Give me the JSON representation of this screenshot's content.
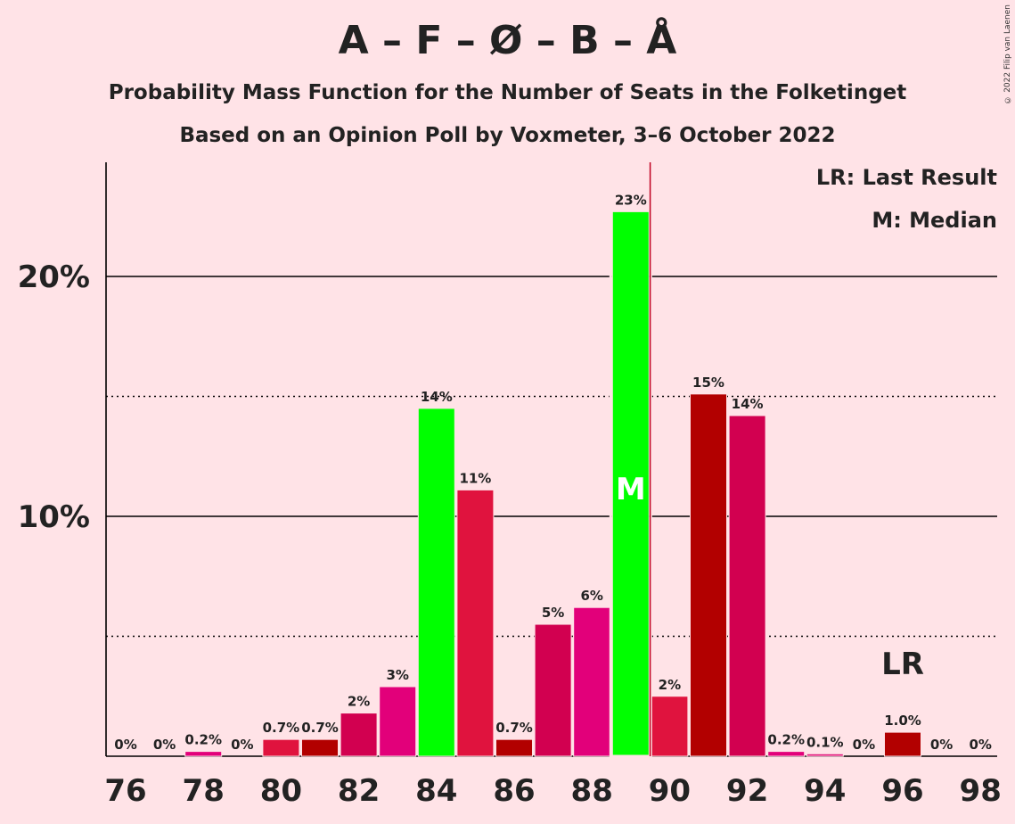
{
  "header": {
    "title": "A – F – Ø – B – Å",
    "subtitle1": "Probability Mass Function for the Number of Seats in the Folketinget",
    "subtitle2": "Based on an Opinion Poll by Voxmeter, 3–6 October 2022"
  },
  "legend": {
    "last_result": "LR: Last Result",
    "median": "M: Median"
  },
  "copyright": "© 2022 Filip van Laenen",
  "chart_data": {
    "type": "bar",
    "x": [
      76,
      77,
      78,
      79,
      80,
      81,
      82,
      83,
      84,
      85,
      86,
      87,
      88,
      89,
      90,
      91,
      92,
      93,
      94,
      95,
      96,
      97,
      98
    ],
    "values": [
      0,
      0,
      0.2,
      0,
      0.7,
      0.7,
      1.8,
      2.9,
      14.5,
      11.1,
      0.7,
      5.5,
      6.2,
      22.7,
      2.5,
      15.1,
      14.2,
      0.2,
      0.1,
      0,
      1.0,
      0,
      0
    ],
    "labels": [
      "0%",
      "0%",
      "0.2%",
      "0%",
      "0.7%",
      "0.7%",
      "2%",
      "3%",
      "14%",
      "11%",
      "0.7%",
      "5%",
      "6%",
      "23%",
      "2%",
      "15%",
      "14%",
      "0.2%",
      "0.1%",
      "0%",
      "1.0%",
      "0%",
      "0%"
    ],
    "colors": [
      "#E0147B",
      "#E0147B",
      "#E2007A",
      "#E0147B",
      "#E0133E",
      "#B20000",
      "#D20050",
      "#E2007A",
      "#00FF00",
      "#E0133E",
      "#B20000",
      "#D20050",
      "#E2007A",
      "#00FF00",
      "#E0133E",
      "#B20000",
      "#D20050",
      "#E2007A",
      "#E0147B",
      "#E0147B",
      "#B20000",
      "#E0147B",
      "#E0147B"
    ],
    "x_ticks": [
      "76",
      "78",
      "80",
      "82",
      "84",
      "86",
      "88",
      "90",
      "92",
      "94",
      "96",
      "98"
    ],
    "y_ticks": [
      "10%",
      "20%"
    ],
    "ylim": [
      0,
      24.7
    ],
    "gridlines_solid": [
      10,
      20
    ],
    "gridlines_dotted": [
      5,
      15
    ],
    "median": 89,
    "median_label": "M",
    "last_result": 96,
    "last_result_label": "LR",
    "majority_line": 89.5
  }
}
